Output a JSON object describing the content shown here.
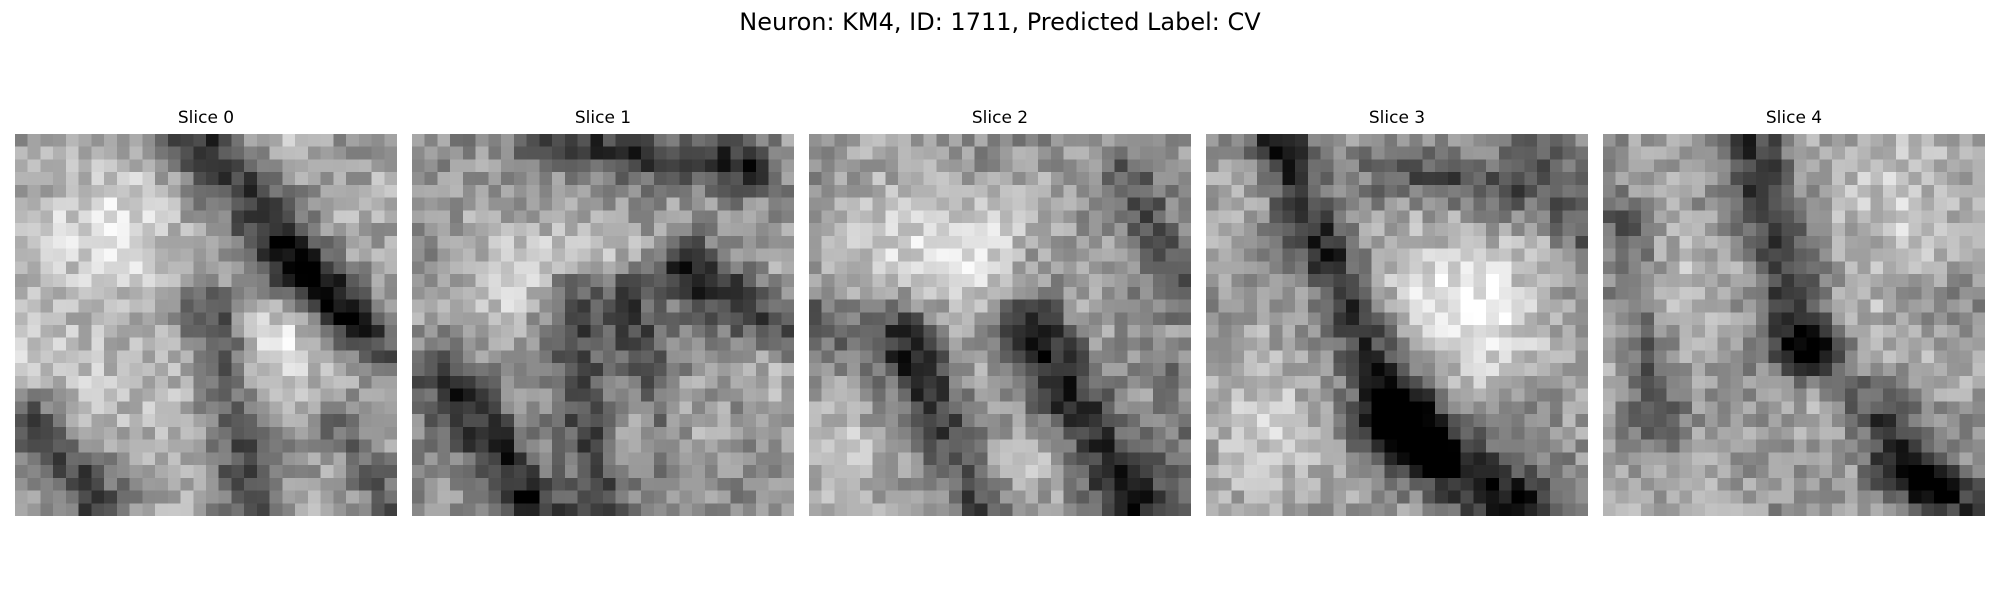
{
  "figure": {
    "title": "Neuron: KM4, ID: 1711, Predicted Label: CV"
  },
  "slices": [
    {
      "title": "Slice 0"
    },
    {
      "title": "Slice 1"
    },
    {
      "title": "Slice 2"
    },
    {
      "title": "Slice 3"
    },
    {
      "title": "Slice 4"
    }
  ],
  "colormap": "gray"
}
